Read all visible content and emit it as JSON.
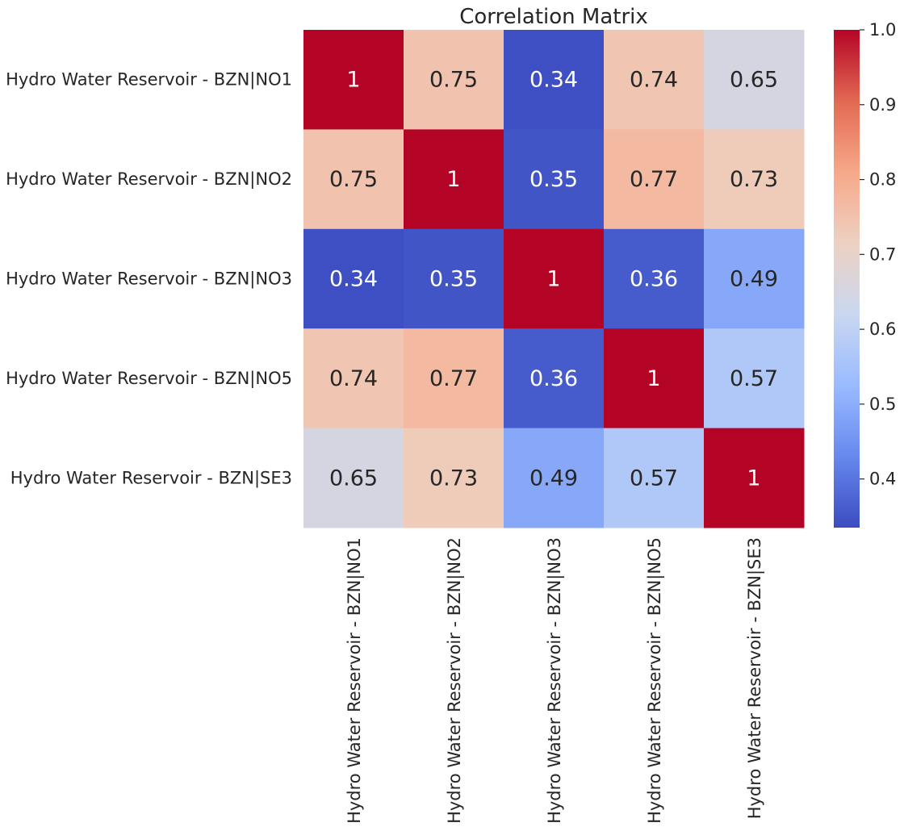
{
  "chart_data": {
    "type": "heatmap",
    "title": "Correlation Matrix",
    "row_labels": [
      "Hydro Water Reservoir - BZN|NO1",
      "Hydro Water Reservoir - BZN|NO2",
      "Hydro Water Reservoir - BZN|NO3",
      "Hydro Water Reservoir - BZN|NO5",
      "Hydro Water Reservoir - BZN|SE3"
    ],
    "col_labels": [
      "Hydro Water Reservoir - BZN|NO1",
      "Hydro Water Reservoir - BZN|NO2",
      "Hydro Water Reservoir - BZN|NO3",
      "Hydro Water Reservoir - BZN|NO5",
      "Hydro Water Reservoir - BZN|SE3"
    ],
    "values": [
      [
        1,
        0.75,
        0.34,
        0.74,
        0.65
      ],
      [
        0.75,
        1,
        0.35,
        0.77,
        0.73
      ],
      [
        0.34,
        0.35,
        1,
        0.36,
        0.49
      ],
      [
        0.74,
        0.77,
        0.36,
        1,
        0.57
      ],
      [
        0.65,
        0.73,
        0.49,
        0.57,
        1
      ]
    ],
    "cell_labels": [
      [
        "1",
        "0.75",
        "0.34",
        "0.74",
        "0.65"
      ],
      [
        "0.75",
        "1",
        "0.35",
        "0.77",
        "0.73"
      ],
      [
        "0.34",
        "0.35",
        "1",
        "0.36",
        "0.49"
      ],
      [
        "0.74",
        "0.77",
        "0.36",
        "1",
        "0.57"
      ],
      [
        "0.65",
        "0.73",
        "0.49",
        "0.57",
        "1"
      ]
    ],
    "colormap": "coolwarm",
    "color_min": 0.335,
    "color_max": 1.0,
    "colorbar_ticks": [
      0.4,
      0.5,
      0.6,
      0.7,
      0.8,
      0.9,
      1.0
    ],
    "colorbar_tick_labels": [
      "0.4",
      "0.5",
      "0.6",
      "0.7",
      "0.8",
      "0.9",
      "1.0"
    ],
    "colormap_stops": [
      "#3b4cc0",
      "#6788ee",
      "#9abbff",
      "#c9d7f0",
      "#edd1c2",
      "#f7a889",
      "#e26952",
      "#b40426"
    ]
  }
}
